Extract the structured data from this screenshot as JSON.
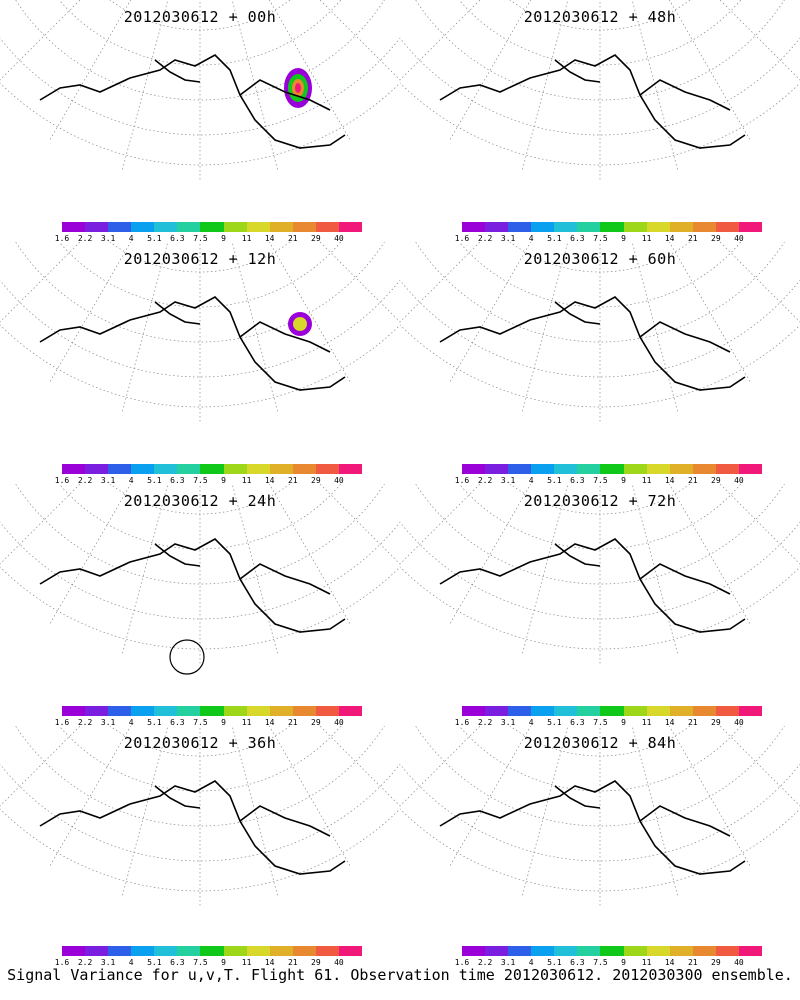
{
  "panels": [
    {
      "title": "2012030612 + 00h",
      "intensity": 0.15,
      "hotspot": "high"
    },
    {
      "title": "2012030612 + 12h",
      "intensity": 0.25,
      "hotspot": "mid"
    },
    {
      "title": "2012030612 + 24h",
      "intensity": 0.35,
      "hotspot": "circle"
    },
    {
      "title": "2012030612 + 36h",
      "intensity": 0.45,
      "hotspot": "none"
    },
    {
      "title": "2012030612 + 48h",
      "intensity": 0.55,
      "hotspot": "none"
    },
    {
      "title": "2012030612 + 60h",
      "intensity": 0.65,
      "hotspot": "none"
    },
    {
      "title": "2012030612 + 72h",
      "intensity": 0.8,
      "hotspot": "none"
    },
    {
      "title": "2012030612 + 84h",
      "intensity": 0.9,
      "hotspot": "none"
    }
  ],
  "colorbar": {
    "labels": [
      "1.6",
      "2.2",
      "3.1",
      "4",
      "5.1",
      "6.3",
      "7.5",
      "9",
      "11",
      "14",
      "21",
      "29",
      "40"
    ],
    "colors": [
      "#9a00d8",
      "#7a1fe0",
      "#2e5fe8",
      "#0aa0f0",
      "#22c0d8",
      "#24d0a0",
      "#10c81a",
      "#9ed61a",
      "#d8d82a",
      "#e0b028",
      "#e88830",
      "#f05a40",
      "#f01878"
    ]
  },
  "caption": "Signal Variance for u,v,T. Flight 61. Observation time 2012030612. 2012030300 ensemble."
}
